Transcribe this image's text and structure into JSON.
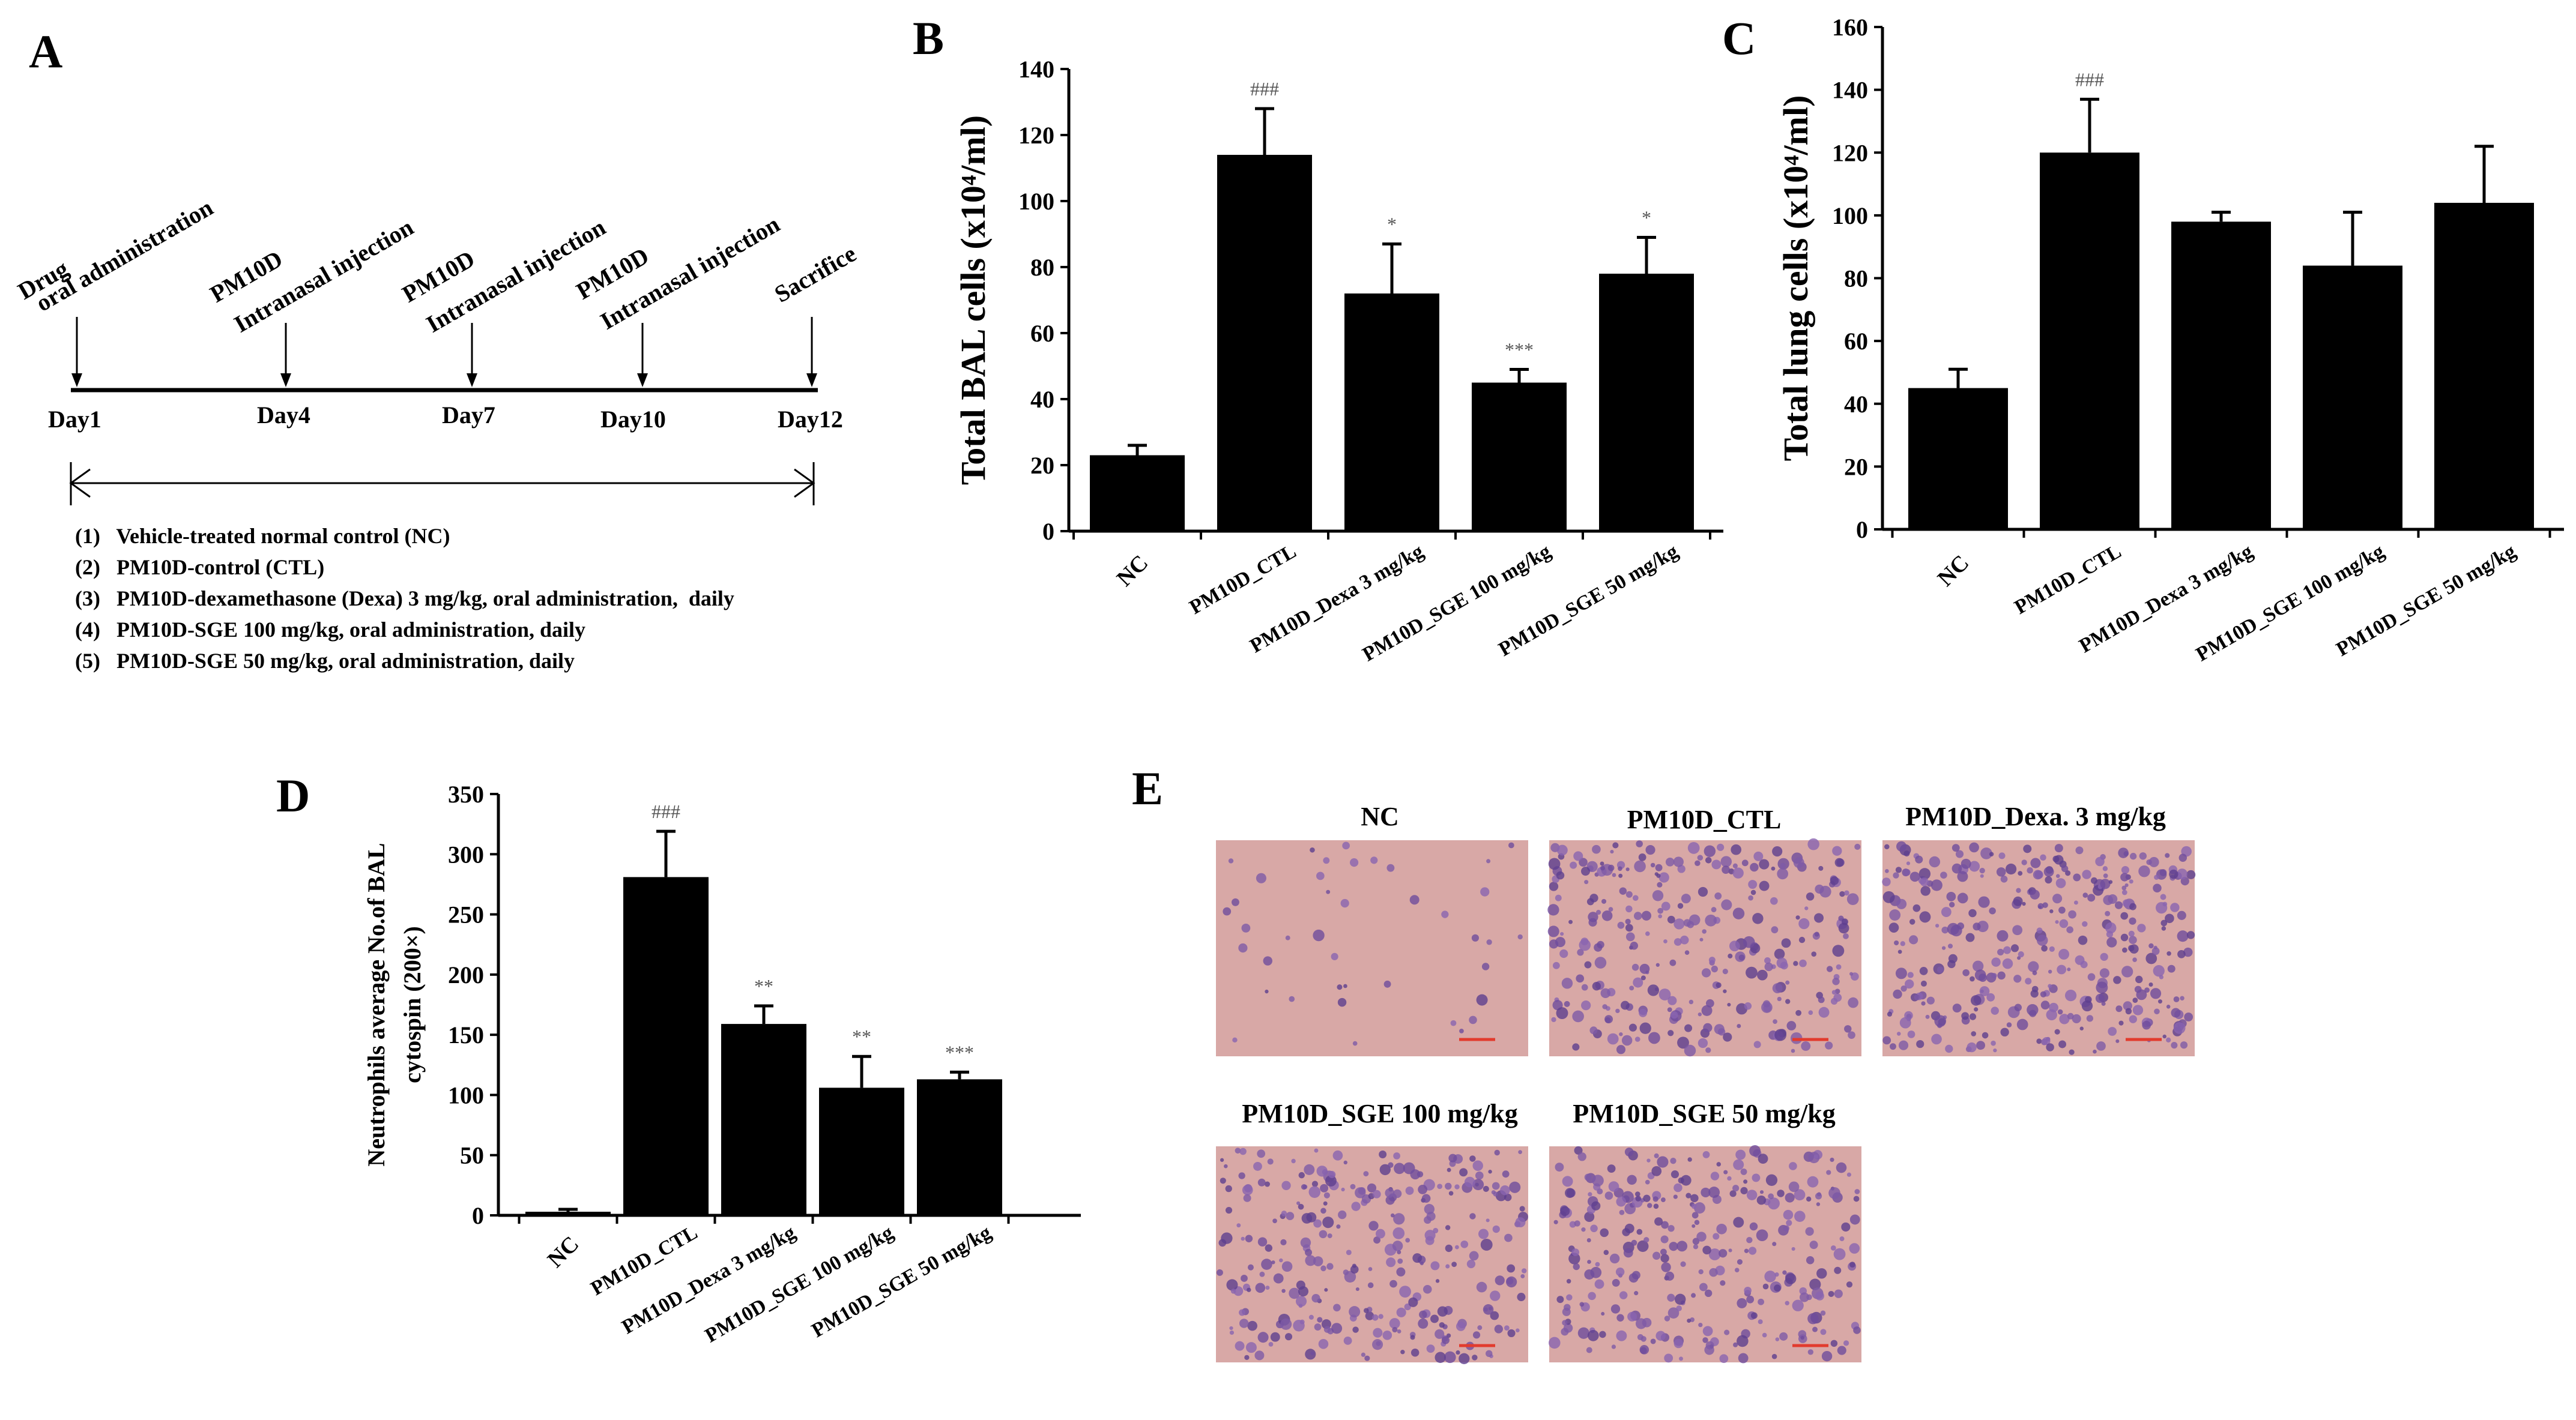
{
  "panel_letters": [
    "A",
    "B",
    "C",
    "D",
    "E"
  ],
  "timeline": {
    "events": [
      {
        "day": "Day1",
        "line1": "Drug",
        "line2": "oral administration"
      },
      {
        "day": "Day4",
        "line1": "PM10D",
        "line2": "Intranasal injection"
      },
      {
        "day": "Day7",
        "line1": "PM10D",
        "line2": "Intranasal injection"
      },
      {
        "day": "Day10",
        "line1": "PM10D",
        "line2": "Intranasal injection"
      },
      {
        "day": "Day12",
        "line1": "Sacrifice",
        "line2": ""
      }
    ],
    "groups": [
      "(1)   Vehicle-treated normal control (NC)",
      "(2)   PM10D-control (CTL)",
      "(3)   PM10D-dexamethasone (Dexa) 3 mg/kg, oral administration,  daily",
      "(4)   PM10D-SGE 100 mg/kg, oral administration, daily",
      "(5)   PM10D-SGE 50 mg/kg, oral administration, daily"
    ]
  },
  "chart_data": [
    {
      "panel": "B",
      "type": "bar",
      "ylabel": "Total  BAL cells (x10⁴/ml)",
      "ylim": [
        0,
        140
      ],
      "yticks": [
        0,
        20,
        40,
        60,
        80,
        100,
        120,
        140
      ],
      "categories": [
        "NC",
        "PM10D_CTL",
        "PM10D_Dexa 3 mg/kg",
        "PM10D_SGE 100 mg/kg",
        "PM10D_SGE 50 mg/kg"
      ],
      "values": [
        23,
        114,
        72,
        45,
        78
      ],
      "errors": [
        3,
        14,
        15,
        4,
        11
      ],
      "annotations": [
        "",
        "###",
        "*",
        "***",
        "*"
      ]
    },
    {
      "panel": "C",
      "type": "bar",
      "ylabel": "Total  lung cells (x10⁴/ml)",
      "ylim": [
        0,
        160
      ],
      "yticks": [
        0,
        20,
        40,
        60,
        80,
        100,
        120,
        140,
        160
      ],
      "categories": [
        "NC",
        "PM10D_CTL",
        "PM10D_Dexa 3 mg/kg",
        "PM10D_SGE 100 mg/kg",
        "PM10D_SGE 50 mg/kg"
      ],
      "values": [
        45,
        120,
        98,
        84,
        104
      ],
      "errors": [
        6,
        17,
        3,
        17,
        18
      ],
      "annotations": [
        "",
        "###",
        "",
        "",
        ""
      ]
    },
    {
      "panel": "D",
      "type": "bar",
      "ylabel_line1": "Neutrophils average No.of  BAL",
      "ylabel_line2": "cytospin (200×)",
      "ylim": [
        0,
        350
      ],
      "yticks": [
        0,
        50,
        100,
        150,
        200,
        250,
        300,
        350
      ],
      "categories": [
        "NC",
        "PM10D_CTL",
        "PM10D_Dexa 3 mg/kg",
        "PM10D_SGE 100 mg/kg",
        "PM10D_SGE 50 mg/kg"
      ],
      "values": [
        3,
        281,
        159,
        106,
        113
      ],
      "errors": [
        2,
        38,
        15,
        26,
        6
      ],
      "annotations": [
        "",
        "###",
        "**",
        "**",
        "***"
      ]
    }
  ],
  "micrographs": {
    "titles": [
      "NC",
      "PM10D_CTL",
      "PM10D_Dexa. 3 mg/kg",
      "PM10D_SGE 100 mg/kg",
      "PM10D_SGE 50 mg/kg"
    ],
    "background": "#d8a8a6",
    "cell_colors": [
      "#7e5aa6",
      "#6f4c9c",
      "#5e3f8f",
      "#8a64b0"
    ],
    "scale_bar_color": "#e23b2e",
    "cell_density": [
      40,
      300,
      360,
      300,
      310
    ]
  }
}
